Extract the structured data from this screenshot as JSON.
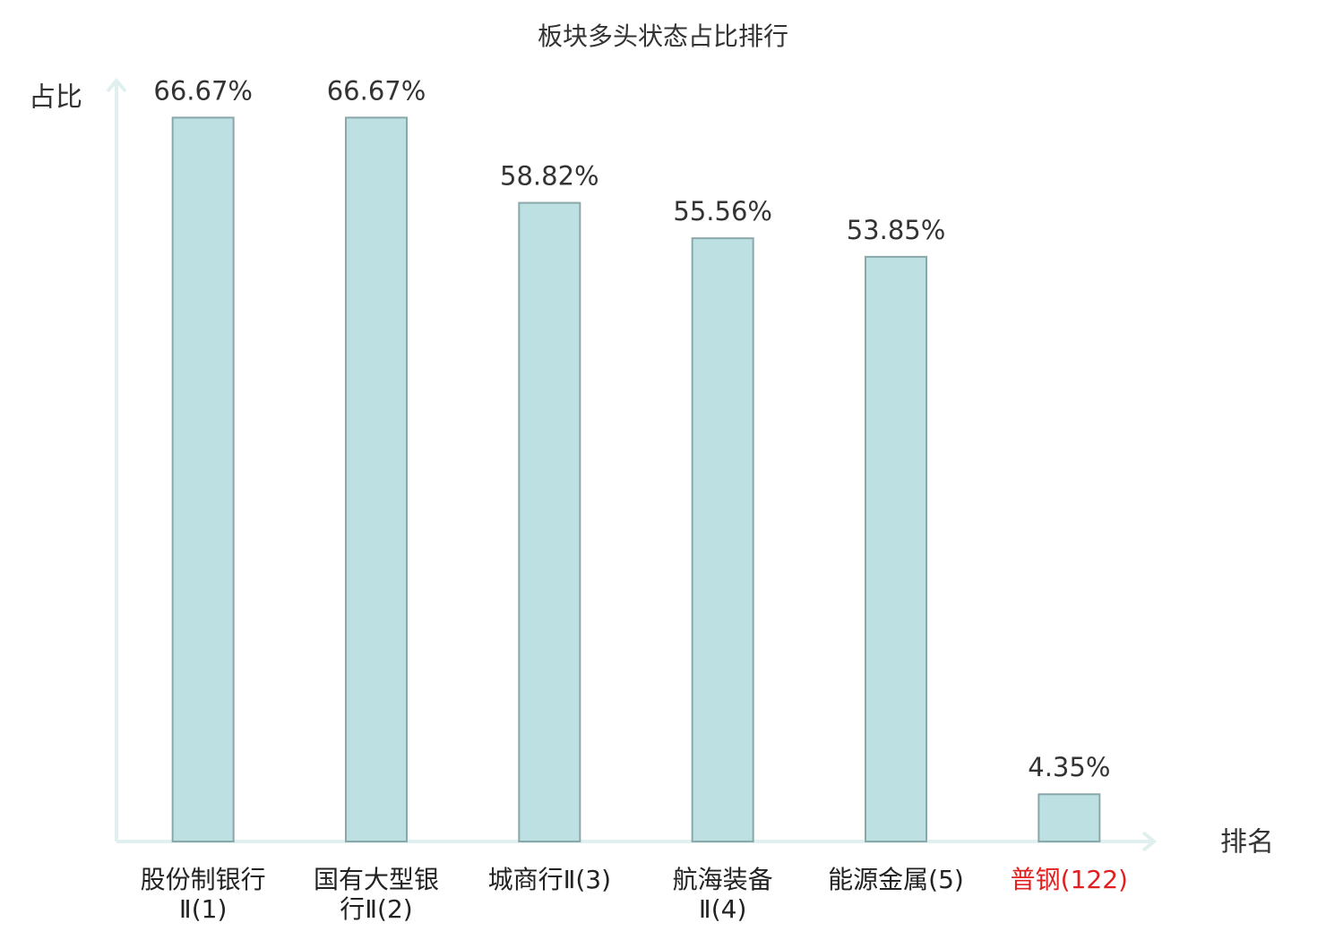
{
  "chart_data": {
    "type": "bar",
    "title": "板块多头状态占比排行",
    "y_label": "占比",
    "x_label": "排名",
    "categories": [
      "股份制银行Ⅱ(1)",
      "国有大型银行Ⅱ(2)",
      "城商行Ⅱ(3)",
      "航海装备Ⅱ(4)",
      "能源金属(5)",
      "普钢(122)"
    ],
    "values": [
      66.67,
      66.67,
      58.82,
      55.56,
      53.85,
      4.35
    ],
    "value_labels": [
      "66.67%",
      "66.67%",
      "58.82%",
      "55.56%",
      "53.85%",
      "4.35%"
    ],
    "color": "#bde0e2",
    "edge_color": "#8aa8aa",
    "label_colors": [
      "#222222",
      "#222222",
      "#222222",
      "#222222",
      "#222222",
      "#e02020"
    ],
    "ylim": [
      0,
      70
    ]
  }
}
